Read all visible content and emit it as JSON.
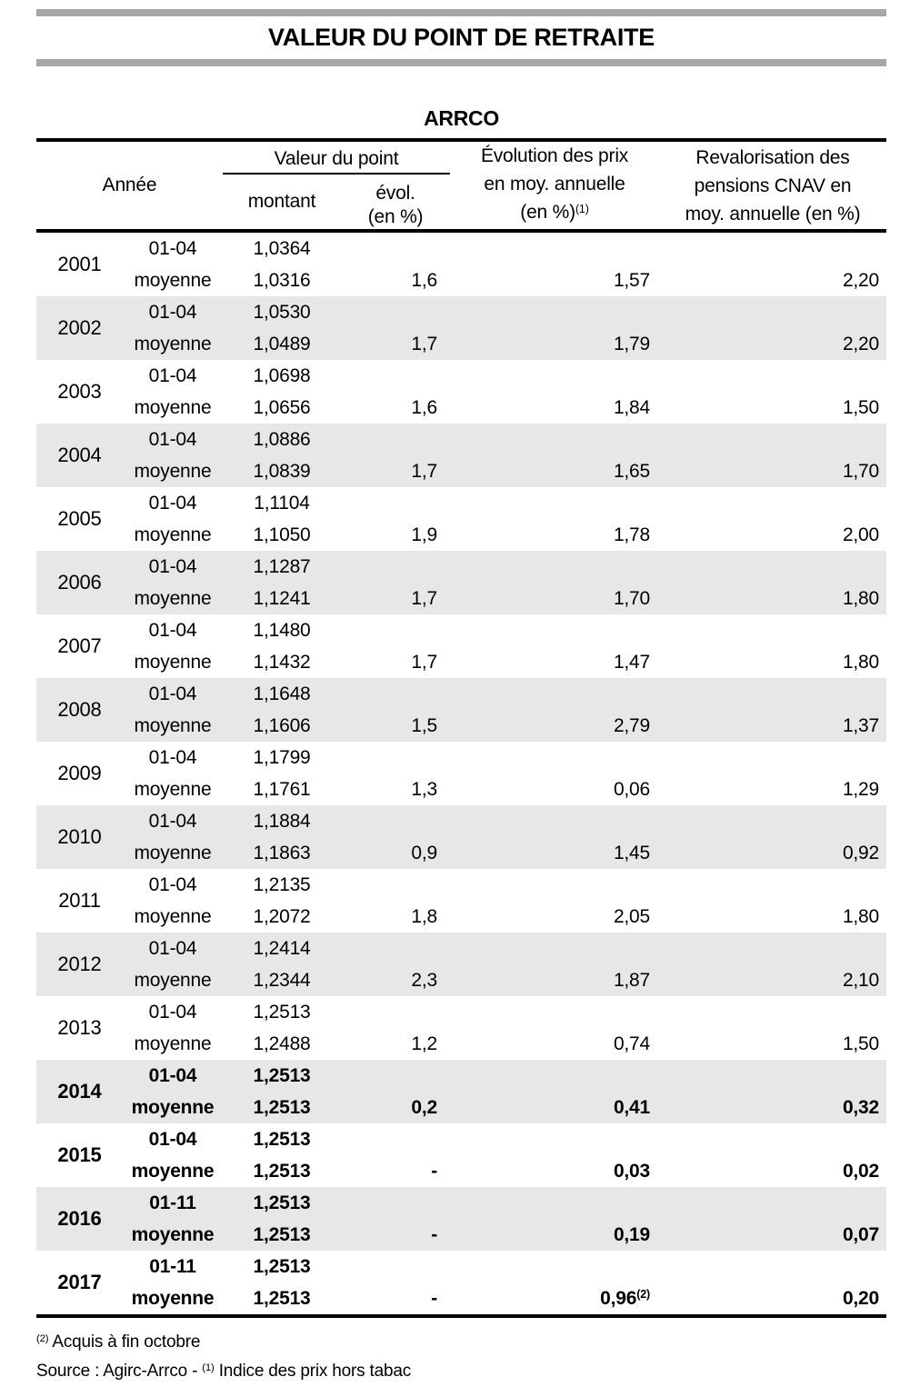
{
  "title": "VALEUR DU POINT DE RETRAITE",
  "subtitle": "ARRCO",
  "colors": {
    "divider_gray": "#a6a6a6",
    "row_stripe_gray": "#e7e7e7",
    "text": "#000000"
  },
  "table": {
    "header": {
      "annee": "Année",
      "valeur_du_point": "Valeur du point",
      "montant": "montant",
      "evol": "évol.",
      "evol_unit": "(en %)",
      "prix_lines": [
        "Évolution des prix",
        "en moy. annuelle",
        "(en %)"
      ],
      "prix_sup": "(1)",
      "cnav_lines": [
        "Revalorisation des",
        "pensions CNAV en",
        "moy. annuelle (en %)"
      ]
    },
    "rows": [
      {
        "year": "2001",
        "p1": "01-04",
        "m1": "1,0364",
        "p2": "moyenne",
        "m2": "1,0316",
        "evol": "1,6",
        "prix": "1,57",
        "cnav": "2,20",
        "shaded": false,
        "bold": false
      },
      {
        "year": "2002",
        "p1": "01-04",
        "m1": "1,0530",
        "p2": "moyenne",
        "m2": "1,0489",
        "evol": "1,7",
        "prix": "1,79",
        "cnav": "2,20",
        "shaded": true,
        "bold": false
      },
      {
        "year": "2003",
        "p1": "01-04",
        "m1": "1,0698",
        "p2": "moyenne",
        "m2": "1,0656",
        "evol": "1,6",
        "prix": "1,84",
        "cnav": "1,50",
        "shaded": false,
        "bold": false
      },
      {
        "year": "2004",
        "p1": "01-04",
        "m1": "1,0886",
        "p2": "moyenne",
        "m2": "1,0839",
        "evol": "1,7",
        "prix": "1,65",
        "cnav": "1,70",
        "shaded": true,
        "bold": false
      },
      {
        "year": "2005",
        "p1": "01-04",
        "m1": "1,1104",
        "p2": "moyenne",
        "m2": "1,1050",
        "evol": "1,9",
        "prix": "1,78",
        "cnav": "2,00",
        "shaded": false,
        "bold": false
      },
      {
        "year": "2006",
        "p1": "01-04",
        "m1": "1,1287",
        "p2": "moyenne",
        "m2": "1,1241",
        "evol": "1,7",
        "prix": "1,70",
        "cnav": "1,80",
        "shaded": true,
        "bold": false
      },
      {
        "year": "2007",
        "p1": "01-04",
        "m1": "1,1480",
        "p2": "moyenne",
        "m2": "1,1432",
        "evol": "1,7",
        "prix": "1,47",
        "cnav": "1,80",
        "shaded": false,
        "bold": false
      },
      {
        "year": "2008",
        "p1": "01-04",
        "m1": "1,1648",
        "p2": "moyenne",
        "m2": "1,1606",
        "evol": "1,5",
        "prix": "2,79",
        "cnav": "1,37",
        "shaded": true,
        "bold": false
      },
      {
        "year": "2009",
        "p1": "01-04",
        "m1": "1,1799",
        "p2": "moyenne",
        "m2": "1,1761",
        "evol": "1,3",
        "prix": "0,06",
        "cnav": "1,29",
        "shaded": false,
        "bold": false
      },
      {
        "year": "2010",
        "p1": "01-04",
        "m1": "1,1884",
        "p2": "moyenne",
        "m2": "1,1863",
        "evol": "0,9",
        "prix": "1,45",
        "cnav": "0,92",
        "shaded": true,
        "bold": false
      },
      {
        "year": "2011",
        "p1": "01-04",
        "m1": "1,2135",
        "p2": "moyenne",
        "m2": "1,2072",
        "evol": "1,8",
        "prix": "2,05",
        "cnav": "1,80",
        "shaded": false,
        "bold": false
      },
      {
        "year": "2012",
        "p1": "01-04",
        "m1": "1,2414",
        "p2": "moyenne",
        "m2": "1,2344",
        "evol": "2,3",
        "prix": "1,87",
        "cnav": "2,10",
        "shaded": true,
        "bold": false
      },
      {
        "year": "2013",
        "p1": "01-04",
        "m1": "1,2513",
        "p2": "moyenne",
        "m2": "1,2488",
        "evol": "1,2",
        "prix": "0,74",
        "cnav": "1,50",
        "shaded": false,
        "bold": false
      },
      {
        "year": "2014",
        "p1": "01-04",
        "m1": "1,2513",
        "p2": "moyenne",
        "m2": "1,2513",
        "evol": "0,2",
        "prix": "0,41",
        "cnav": "0,32",
        "shaded": true,
        "bold": true
      },
      {
        "year": "2015",
        "p1": "01-04",
        "m1": "1,2513",
        "p2": "moyenne",
        "m2": "1,2513",
        "evol": "-",
        "prix": "0,03",
        "cnav": "0,02",
        "shaded": false,
        "bold": true
      },
      {
        "year": "2016",
        "p1": "01-11",
        "m1": "1,2513",
        "p2": "moyenne",
        "m2": "1,2513",
        "evol": "-",
        "prix": "0,19",
        "cnav": "0,07",
        "shaded": true,
        "bold": true
      },
      {
        "year": "2017",
        "p1": "01-11",
        "m1": "1,2513",
        "p2": "moyenne",
        "m2": "1,2513",
        "evol": "-",
        "prix": "0,96",
        "prix_sup": "(2)",
        "cnav": "0,20",
        "shaded": false,
        "bold": true
      }
    ]
  },
  "footnotes": {
    "note2_sup": "(2)",
    "note2_text": " Acquis à fin octobre",
    "source_prefix": "Source : Agirc-Arrco - ",
    "source_sup": "(1)",
    "source_text": " Indice des prix hors tabac"
  }
}
